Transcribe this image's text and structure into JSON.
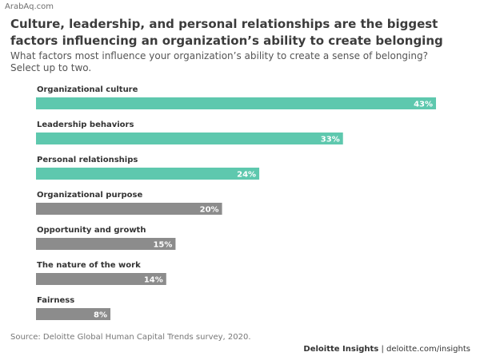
{
  "watermark": "ArabAq.com",
  "title": "Culture, leadership, and personal relationships are the biggest factors influencing an organization’s ability to create belonging",
  "subtitle": "What factors most influence your organization’s ability to create a sense of belonging? Select up to two.",
  "source": "Source: Deloitte Global Human Capital Trends survey, 2020.",
  "credit": {
    "brand": "Deloitte Insights",
    "separator": " | ",
    "site": "deloitte.com/insights"
  },
  "colors": {
    "highlight": "#5ec8ae",
    "muted": "#8c8c8c"
  },
  "chart_data": {
    "type": "bar",
    "orientation": "horizontal",
    "categories": [
      "Organizational culture",
      "Leadership behaviors",
      "Personal relationships",
      "Organizational purpose",
      "Opportunity and growth",
      "The nature of the work",
      "Fairness"
    ],
    "values": [
      43,
      33,
      24,
      20,
      15,
      14,
      8
    ],
    "value_labels": [
      "43%",
      "33%",
      "24%",
      "20%",
      "15%",
      "14%",
      "8%"
    ],
    "highlighted": [
      true,
      true,
      true,
      false,
      false,
      false,
      false
    ],
    "xlim": [
      0,
      43
    ],
    "unit": "%",
    "grid": false,
    "legend": "none"
  }
}
